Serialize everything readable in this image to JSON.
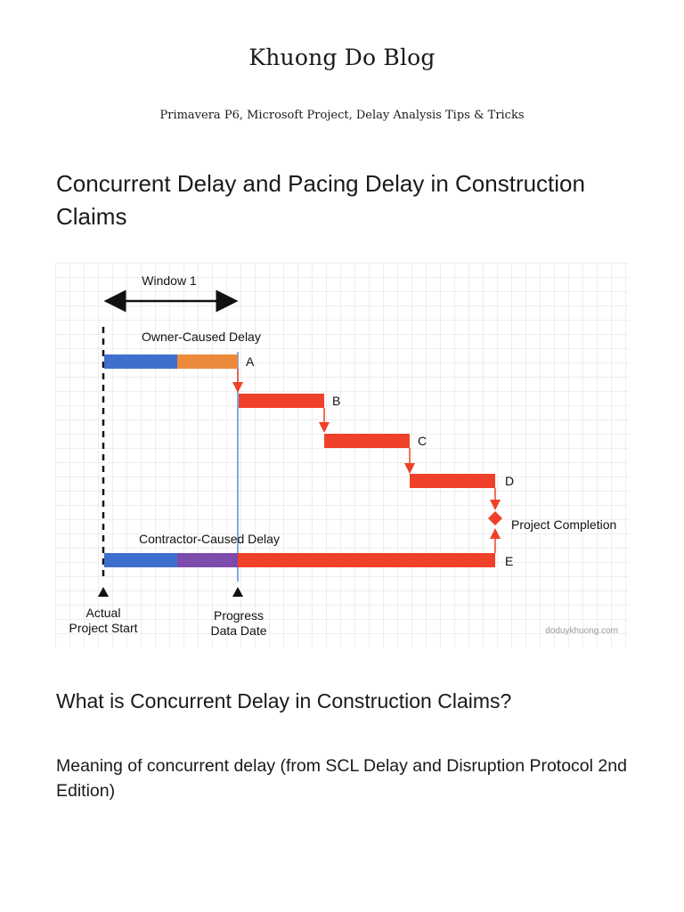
{
  "blog": {
    "title": "Khuong Do Blog",
    "tagline": "Primavera P6, Microsoft Project, Delay Analysis Tips & Tricks"
  },
  "post": {
    "title": "Concurrent Delay and Pacing Delay in Construction Claims",
    "section_heading": "What is Concurrent Delay in Construction Claims?",
    "paragraph": "Meaning of concurrent delay (from SCL Delay and Disruption Protocol 2nd Edition)"
  },
  "figure": {
    "window_label": "Window 1",
    "owner_delay_label": "Owner-Caused Delay",
    "contractor_delay_label": "Contractor-Caused Delay",
    "activity_labels": [
      "A",
      "B",
      "C",
      "D",
      "E"
    ],
    "milestone_label": "Project Completion",
    "start_label_line1": "Actual",
    "start_label_line2": "Project Start",
    "data_date_label_line1": "Progress",
    "data_date_label_line2": "Data Date",
    "watermark": "doduykhuong.com",
    "colors": {
      "completed": "#3f6fce",
      "owner_delay": "#ec8a3c",
      "contractor_delay": "#7c4bab",
      "critical": "#ef4129",
      "data_date_line": "#5b8fd6",
      "grid": "#dedede"
    }
  }
}
